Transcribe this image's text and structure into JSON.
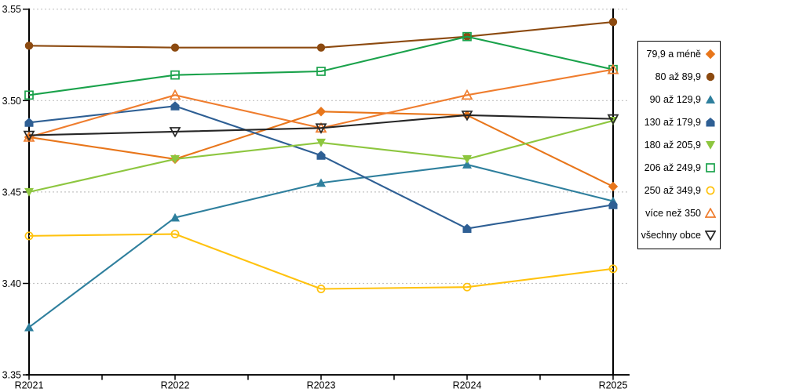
{
  "chart_data": {
    "type": "line",
    "title": "",
    "x_categories": [
      "R2021",
      "R2022",
      "R2023",
      "R2024",
      "R2025"
    ],
    "y_ticks": [
      "3.35",
      "3.40",
      "3.45",
      "3.50",
      "3.55"
    ],
    "ylim": [
      3.35,
      3.55
    ],
    "ytick_step": 0.05,
    "grid": "horizontal-dashed",
    "legend_position": "right",
    "colors": {
      "axis": "#000000",
      "gridline": "#c3c3c3",
      "background": "#ffffff"
    },
    "series": [
      {
        "name": "79,9 a méně",
        "marker": "diamond",
        "filled": true,
        "color": "#e8761b",
        "values": [
          3.48,
          3.468,
          3.494,
          3.492,
          3.453
        ]
      },
      {
        "name": "80 až 89,9",
        "marker": "circle",
        "filled": true,
        "color": "#8c4a10",
        "values": [
          3.53,
          3.529,
          3.529,
          3.535,
          3.543
        ]
      },
      {
        "name": "90 až 129,9",
        "marker": "triangle-up",
        "filled": true,
        "color": "#2e7f9d",
        "values": [
          3.376,
          3.436,
          3.455,
          3.465,
          3.445
        ]
      },
      {
        "name": "130 až 179,9",
        "marker": "pentagon",
        "filled": true,
        "color": "#2e5f94",
        "values": [
          3.488,
          3.497,
          3.47,
          3.43,
          3.443
        ]
      },
      {
        "name": "180 až 205,9",
        "marker": "triangle-down",
        "filled": true,
        "color": "#8dc63f",
        "values": [
          3.45,
          3.468,
          3.477,
          3.468,
          3.489
        ]
      },
      {
        "name": "206 až 249,9",
        "marker": "square",
        "filled": false,
        "color": "#1aa24b",
        "values": [
          3.503,
          3.514,
          3.516,
          3.535,
          3.517
        ]
      },
      {
        "name": "250 až 349,9",
        "marker": "circle",
        "filled": false,
        "color": "#ffc20e",
        "values": [
          3.426,
          3.427,
          3.397,
          3.398,
          3.408
        ]
      },
      {
        "name": "více než 350",
        "marker": "triangle-up",
        "filled": false,
        "color": "#ef7d2e",
        "values": [
          3.48,
          3.503,
          3.485,
          3.503,
          3.517
        ]
      },
      {
        "name": "všechny obce",
        "marker": "triangle-down",
        "filled": false,
        "color": "#262626",
        "values": [
          3.481,
          3.483,
          3.485,
          3.492,
          3.49
        ]
      }
    ]
  }
}
